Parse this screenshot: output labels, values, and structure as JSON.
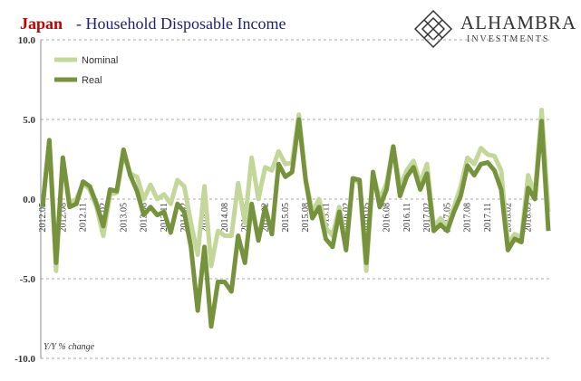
{
  "chart_data": {
    "type": "line",
    "title_highlight": "Japan",
    "title": "- Household Disposable Income",
    "brand": "ALHAMBRA",
    "brand_sub": "INVESTMENTS",
    "annotation": "Y/Y % change",
    "categories": [
      "2012.05",
      null,
      null,
      "2012.08",
      null,
      null,
      "2012.11",
      null,
      null,
      "2013.02",
      null,
      null,
      "2013.05",
      null,
      null,
      "2013.08",
      null,
      null,
      "2013.11",
      null,
      null,
      "2014.02",
      null,
      null,
      "2014.05",
      null,
      null,
      "2014.08",
      null,
      null,
      "2014.11",
      null,
      null,
      "2015.02",
      null,
      null,
      "2015.05",
      null,
      null,
      "2015.08",
      null,
      null,
      "2015.11",
      null,
      null,
      "2016.02",
      null,
      null,
      "2016.05",
      null,
      null,
      "2016.08",
      null,
      null,
      "2016.11",
      null,
      null,
      "2017.02",
      null,
      null,
      "2017.05",
      null,
      null,
      "2017.08",
      null,
      null,
      "2017.11",
      null,
      null,
      "2018.02",
      null,
      null,
      "2018.05",
      null,
      null,
      null
    ],
    "series": [
      {
        "name": "Nominal",
        "color": "#c4d79b",
        "values": [
          -0.3,
          3.6,
          -4.5,
          2.6,
          -0.2,
          0,
          1.0,
          0.6,
          -0.5,
          -2.3,
          0.3,
          0.4,
          2.8,
          1.6,
          1.4,
          0.0,
          0.9,
          0.0,
          0.3,
          -0.3,
          1.2,
          0.8,
          -1.5,
          -3.5,
          0.8,
          -4.2,
          -2.0,
          -2.3,
          -2.3,
          1.0,
          -1.5,
          2.6,
          0.0,
          2.0,
          1.8,
          3.0,
          2.2,
          2.3,
          5.3,
          1.3,
          -0.8,
          0.0,
          -1.8,
          -2.3,
          -0.5,
          -3.0,
          1.3,
          1.0,
          -4.5,
          1.6,
          0.0,
          1.0,
          3.3,
          0.8,
          1.8,
          2.4,
          1.0,
          2.2,
          -1.8,
          -1.2,
          -1.8,
          -0.5,
          0.8,
          2.6,
          2.2,
          3.2,
          2.8,
          2.7,
          1.8,
          -2.8,
          -2.2,
          -2.4,
          1.5,
          0.3,
          5.6,
          -0.8
        ]
      },
      {
        "name": "Real",
        "color": "#76923c",
        "values": [
          -0.5,
          3.7,
          -4.0,
          2.6,
          -0.5,
          -0.3,
          1.1,
          0.8,
          -0.3,
          -1.7,
          0.6,
          0.5,
          3.1,
          1.5,
          0.5,
          -1.0,
          -0.5,
          -1.0,
          -0.8,
          -2.1,
          -0.3,
          -0.8,
          -3.0,
          -7.0,
          -3.0,
          -8.0,
          -5.2,
          -5.2,
          -5.8,
          -2.3,
          -4.0,
          -0.3,
          -2.6,
          -0.5,
          -2.2,
          2.2,
          1.4,
          1.7,
          5.0,
          1.2,
          -1.2,
          -0.5,
          -2.5,
          -3.0,
          -0.8,
          -3.2,
          1.3,
          1.2,
          -4.0,
          1.7,
          -0.5,
          0.6,
          3.3,
          0.2,
          1.4,
          2.0,
          0.6,
          1.6,
          -2.0,
          -1.6,
          -2.0,
          -0.8,
          0.2,
          2.1,
          1.5,
          2.2,
          2.3,
          1.8,
          0.6,
          -3.2,
          -2.5,
          -2.7,
          0.7,
          0.0,
          4.9,
          -2.0
        ]
      }
    ],
    "ylim": [
      -10,
      10
    ],
    "yticks": [
      {
        "value": -10,
        "label": "-10.0"
      },
      {
        "value": -5,
        "label": "-5.0"
      },
      {
        "value": 0,
        "label": "0.0"
      },
      {
        "value": 5,
        "label": "5.0"
      },
      {
        "value": 10,
        "label": "10.0"
      }
    ],
    "grid": true
  }
}
